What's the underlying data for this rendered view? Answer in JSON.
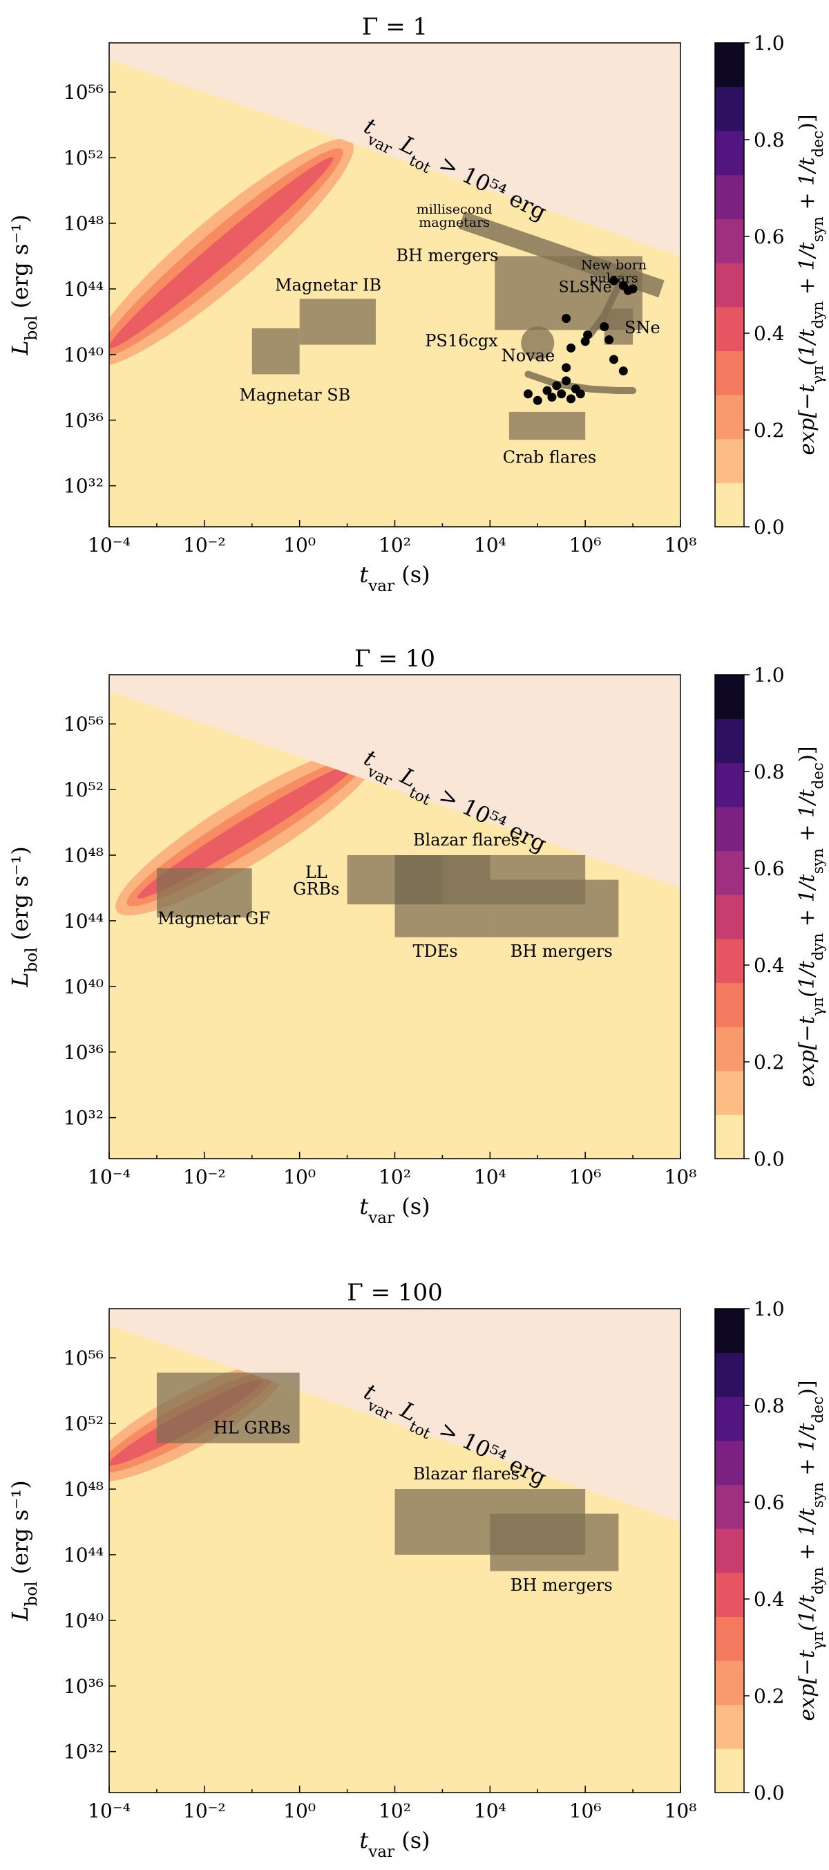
{
  "colorbar": {
    "label": "exp[−t_γπ(1/t_dyn + 1/t_syn + 1/t_dec)]",
    "ticks": [
      "0.0",
      "0.2",
      "0.4",
      "0.6",
      "0.8",
      "1.0"
    ],
    "colors": [
      "#fde7a9",
      "#fcbd85",
      "#f99a6c",
      "#f47a5f",
      "#e75563",
      "#c63d6e",
      "#9f2f7f",
      "#7a2181",
      "#531680",
      "#2d1160",
      "#0e0822"
    ]
  },
  "colors": {
    "background": "#fde7a9",
    "excluded": "#f9e6d6",
    "box": "#7d6f53",
    "points": "#000000"
  },
  "chart_data": [
    {
      "type": "heatmap",
      "title": "Γ = 1",
      "xlabel": "t_var (s)",
      "ylabel": "L_bol (erg s⁻¹)",
      "xscale": "log",
      "yscale": "log",
      "xlim_log10": [
        -4,
        8
      ],
      "ylim_log10": [
        29.5,
        59
      ],
      "x_ticks": [
        "10⁻⁴",
        "10⁻²",
        "10⁰",
        "10²",
        "10⁴",
        "10⁶",
        "10⁸"
      ],
      "y_ticks": [
        "10³²",
        "10³⁶",
        "10⁴⁰",
        "10⁴⁴",
        "10⁴⁸",
        "10⁵²",
        "10⁵⁶"
      ],
      "excluded_region_label": "t_var L_tot > 10⁵⁴ erg",
      "ridge": {
        "start_log": [
          -4,
          40.4
        ],
        "end_log": [
          0.7,
          52
        ],
        "halfwidths": [
          1.7,
          1.1,
          0.6
        ]
      },
      "boxes": [
        {
          "label": "Magnetar SB",
          "x_log": [
            -1,
            0
          ],
          "y_log": [
            38.8,
            41.6
          ]
        },
        {
          "label": "Magnetar IB",
          "x_log": [
            0,
            1.6
          ],
          "y_log": [
            40.6,
            43.4
          ]
        },
        {
          "label": "BH mergers",
          "x_log": [
            4.1,
            7.2
          ],
          "y_log": [
            41.5,
            46
          ]
        },
        {
          "label": "SNe",
          "x_log": [
            6.4,
            7.0
          ],
          "y_log": [
            40.6,
            42.8
          ]
        },
        {
          "label": "Crab flares",
          "x_log": [
            4.4,
            6.0
          ],
          "y_log": [
            34.8,
            36.5
          ]
        }
      ],
      "bands": [
        {
          "label": "millisecond magnetars",
          "x_log": [
            3.4,
            7.6
          ],
          "y_log": [
            48.2,
            44.0
          ]
        }
      ],
      "arcs": [
        {
          "label": "Novae",
          "points_log": [
            [
              4.8,
              38.8
            ],
            [
              5.4,
              38.2
            ],
            [
              6.1,
              37.9
            ],
            [
              6.7,
              37.8
            ],
            [
              7.0,
              37.8
            ]
          ]
        },
        {
          "label": "New born pulsars",
          "points_log": [
            [
              6.1,
              41.2
            ],
            [
              6.4,
              42.4
            ],
            [
              6.6,
              43.6
            ],
            [
              6.8,
              44.8
            ]
          ]
        }
      ],
      "circles": [
        {
          "label": "PS16cgx",
          "x_log": 5.0,
          "y_log": 40.7
        }
      ],
      "point_labels": [
        {
          "label": "SLSNe",
          "x_log": 6.1,
          "y_log": 43.6
        }
      ],
      "points_log": [
        [
          4.8,
          37.6
        ],
        [
          5.0,
          37.2
        ],
        [
          5.2,
          37.8
        ],
        [
          5.3,
          37.4
        ],
        [
          5.4,
          38.1
        ],
        [
          5.5,
          37.6
        ],
        [
          5.6,
          38.4
        ],
        [
          5.7,
          37.3
        ],
        [
          5.8,
          37.9
        ],
        [
          5.9,
          37.6
        ],
        [
          5.6,
          39.2
        ],
        [
          5.7,
          40.4
        ],
        [
          6.0,
          40.8
        ],
        [
          6.05,
          41.2
        ],
        [
          5.6,
          42.2
        ],
        [
          6.4,
          41.7
        ],
        [
          6.5,
          40.9
        ],
        [
          6.6,
          39.7
        ],
        [
          6.8,
          39.0
        ],
        [
          6.6,
          44.5
        ],
        [
          6.8,
          44.2
        ],
        [
          6.9,
          43.9
        ],
        [
          7.0,
          44.0
        ]
      ]
    },
    {
      "type": "heatmap",
      "title": "Γ = 10",
      "xlabel": "t_var (s)",
      "ylabel": "L_bol (erg s⁻¹)",
      "xscale": "log",
      "yscale": "log",
      "xlim_log10": [
        -4,
        8
      ],
      "ylim_log10": [
        29.5,
        59
      ],
      "x_ticks": [
        "10⁻⁴",
        "10⁻²",
        "10⁰",
        "10²",
        "10⁴",
        "10⁶",
        "10⁸"
      ],
      "y_ticks": [
        "10³²",
        "10³⁶",
        "10⁴⁰",
        "10⁴⁴",
        "10⁴⁸",
        "10⁵²",
        "10⁵⁶"
      ],
      "excluded_region_label": "t_var L_tot > 10⁵⁴ erg",
      "ridge": {
        "start_log": [
          -3.4,
          45.4
        ],
        "end_log": [
          1.2,
          53.6
        ],
        "halfwidths": [
          1.6,
          1.0,
          0.55
        ]
      },
      "boxes": [
        {
          "label": "Magnetar GF",
          "x_log": [
            -3,
            -1
          ],
          "y_log": [
            44.2,
            47.2
          ]
        },
        {
          "label": "LL GRBs",
          "x_log": [
            1,
            3
          ],
          "y_log": [
            45,
            48
          ]
        },
        {
          "label": "Blazar flares",
          "x_log": [
            2,
            6
          ],
          "y_log": [
            45,
            48
          ]
        },
        {
          "label": "TDEs",
          "x_log": [
            2,
            4
          ],
          "y_log": [
            43,
            48
          ]
        },
        {
          "label": "BH mergers",
          "x_log": [
            4,
            6.7
          ],
          "y_log": [
            43,
            46.5
          ]
        }
      ]
    },
    {
      "type": "heatmap",
      "title": "Γ = 100",
      "xlabel": "t_var (s)",
      "ylabel": "L_bol (erg s⁻¹)",
      "xscale": "log",
      "yscale": "log",
      "xlim_log10": [
        -4,
        8
      ],
      "ylim_log10": [
        29.5,
        59
      ],
      "x_ticks": [
        "10⁻⁴",
        "10⁻²",
        "10⁰",
        "10²",
        "10⁴",
        "10⁶",
        "10⁸"
      ],
      "y_ticks": [
        "10³²",
        "10³⁶",
        "10⁴⁰",
        "10⁴⁴",
        "10⁴⁸",
        "10⁵²",
        "10⁵⁶"
      ],
      "excluded_region_label": "t_var L_tot > 10⁵⁴ erg",
      "ridge": {
        "start_log": [
          -4,
          49.5
        ],
        "end_log": [
          -0.8,
          54.6
        ],
        "halfwidths": [
          1.4,
          0.9,
          0.5
        ]
      },
      "boxes": [
        {
          "label": "HL GRBs",
          "x_log": [
            -3,
            0
          ],
          "y_log": [
            50.8,
            55.1
          ]
        },
        {
          "label": "Blazar flares",
          "x_log": [
            2,
            6
          ],
          "y_log": [
            44,
            48
          ]
        },
        {
          "label": "BH mergers",
          "x_log": [
            4,
            6.7
          ],
          "y_log": [
            43,
            46.5
          ]
        }
      ]
    }
  ]
}
